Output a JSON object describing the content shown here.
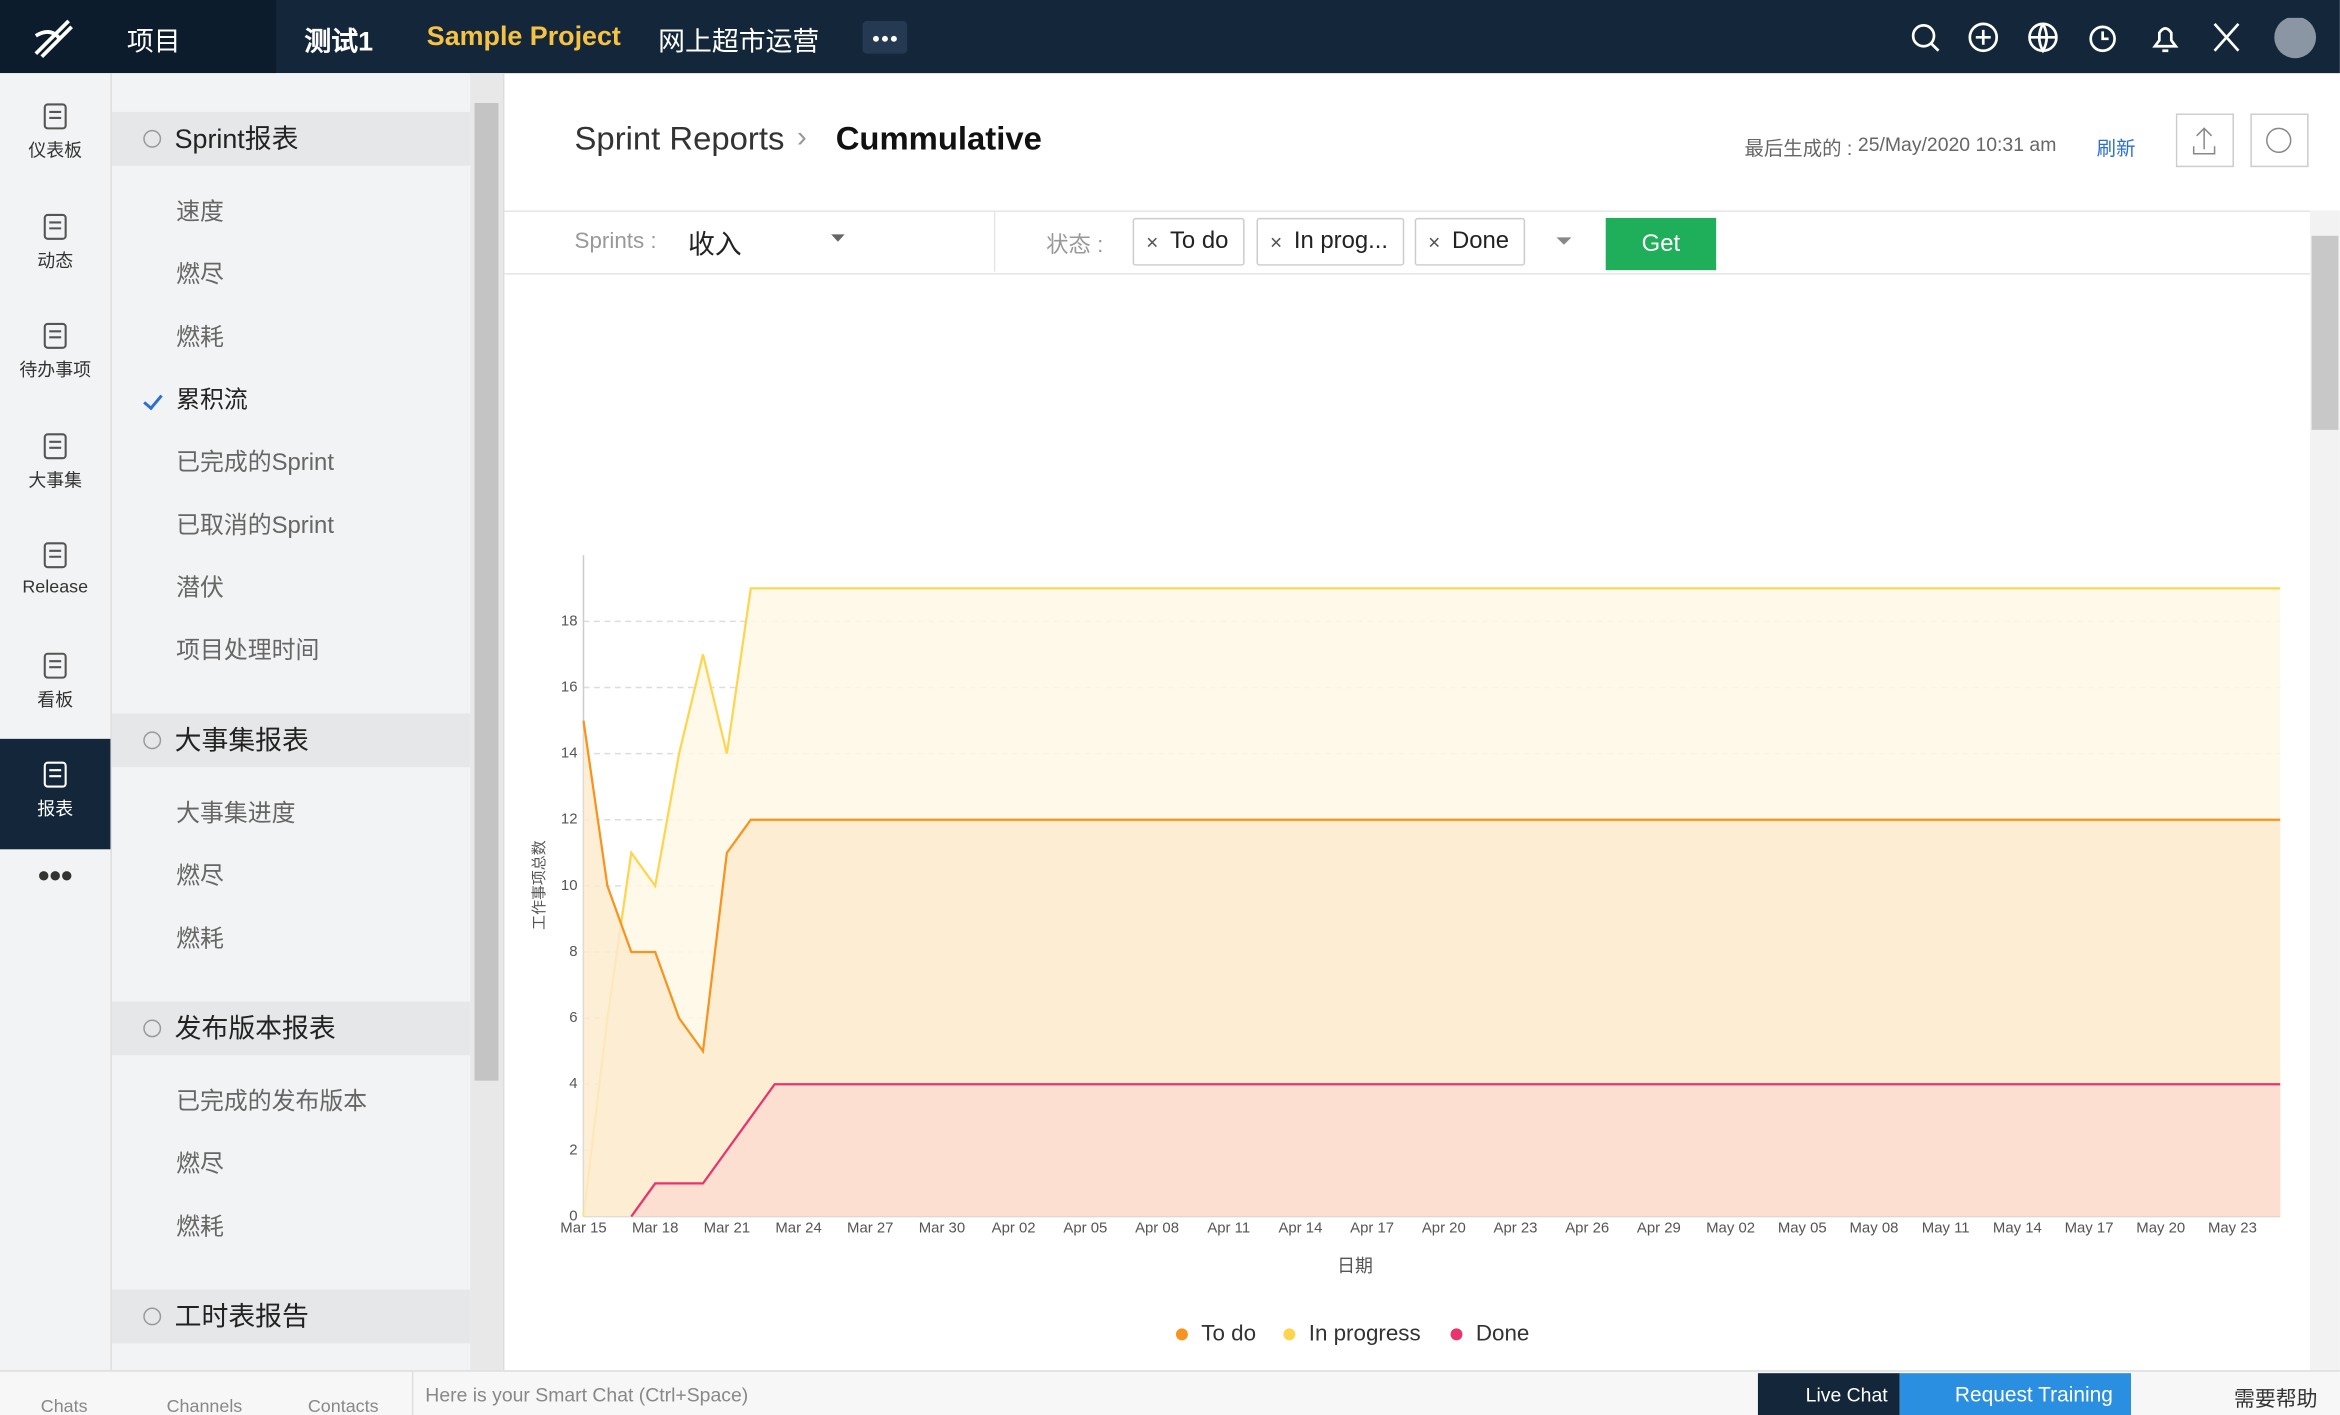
{
  "top_nav": {
    "project": "项目",
    "tabs": [
      "测试1",
      "Sample Project",
      "网上超市运营"
    ]
  },
  "rail": [
    "仪表板",
    "动态",
    "待办事项",
    "大事集",
    "Release",
    "看板",
    "报表"
  ],
  "sidebar": {
    "sections": [
      {
        "title": "Sprint报表",
        "items": [
          "速度",
          "燃尽",
          "燃耗",
          "累积流",
          "已完成的Sprint",
          "已取消的Sprint",
          "潜伏",
          "项目处理时间"
        ]
      },
      {
        "title": "大事集报表",
        "items": [
          "大事集进度",
          "燃尽",
          "燃耗"
        ]
      },
      {
        "title": "发布版本报表",
        "items": [
          "已完成的发布版本",
          "燃尽",
          "燃耗"
        ]
      },
      {
        "title": "工时表报告"
      }
    ]
  },
  "header": {
    "breadcrumb": "Sprint Reports",
    "title": "Cummulative",
    "generated_label": "最后生成的 :",
    "generated_at": "25/May/2020 10:31 am",
    "refresh": "刷新"
  },
  "filters": {
    "sprints_label": "Sprints :",
    "sprint": "收入",
    "status_label": "状态 :",
    "statuses": [
      "To do",
      "In prog...",
      "Done"
    ],
    "button": "Get"
  },
  "bottom_bar": {
    "tabs": [
      "Chats",
      "Channels",
      "Contacts"
    ],
    "chat_placeholder": "Here is your Smart Chat (Ctrl+Space)",
    "live_chat": "Live Chat",
    "request_training": "Request Training",
    "help": "需要帮助"
  },
  "chart_data": {
    "type": "area",
    "x_label": "日期",
    "y_label": "工作事项总数",
    "categories": [
      "Mar 15",
      null,
      null,
      "Mar 18",
      null,
      null,
      "Mar 21",
      null,
      null,
      "Mar 24",
      null,
      null,
      "Mar 27",
      null,
      null,
      "Mar 30",
      null,
      null,
      "Apr 02",
      null,
      null,
      "Apr 05",
      null,
      null,
      "Apr 08",
      null,
      null,
      "Apr 11",
      null,
      null,
      "Apr 14",
      null,
      null,
      "Apr 17",
      null,
      null,
      "Apr 20",
      null,
      null,
      "Apr 23",
      null,
      null,
      "Apr 26",
      null,
      null,
      "Apr 29",
      null,
      null,
      "May 02",
      null,
      null,
      "May 05",
      null,
      null,
      "May 08",
      null,
      null,
      "May 11",
      null,
      null,
      "May 14",
      null,
      null,
      "May 17",
      null,
      null,
      "May 20",
      null,
      null,
      "May 23",
      null,
      null
    ],
    "series": [
      {
        "name": "To do",
        "color": "#f7931e",
        "fill": "#fdebcf",
        "values": [
          15,
          10,
          8,
          8,
          6,
          5,
          11,
          12,
          12,
          12,
          12,
          12,
          12,
          12,
          12,
          12,
          12,
          12,
          12,
          12,
          12,
          12,
          12,
          12,
          12,
          12,
          12,
          12,
          12,
          12,
          12,
          12,
          12,
          12,
          12,
          12,
          12,
          12,
          12,
          12,
          12,
          12,
          12,
          12,
          12,
          12,
          12,
          12,
          12,
          12,
          12,
          12,
          12,
          12,
          12,
          12,
          12,
          12,
          12,
          12,
          12,
          12,
          12,
          12,
          12,
          12,
          12,
          12,
          12,
          12,
          12,
          12
        ]
      },
      {
        "name": "In progress",
        "color": "#ffd54f",
        "fill": "#fff8e6",
        "values": [
          0,
          6,
          11,
          10,
          14,
          17,
          14,
          19,
          19,
          19,
          19,
          19,
          19,
          19,
          19,
          19,
          19,
          19,
          19,
          19,
          19,
          19,
          19,
          19,
          19,
          19,
          19,
          19,
          19,
          19,
          19,
          19,
          19,
          19,
          19,
          19,
          19,
          19,
          19,
          19,
          19,
          19,
          19,
          19,
          19,
          19,
          19,
          19,
          19,
          19,
          19,
          19,
          19,
          19,
          19,
          19,
          19,
          19,
          19,
          19,
          19,
          19,
          19,
          19,
          19,
          19,
          19,
          19,
          19,
          19,
          19,
          19
        ]
      },
      {
        "name": "Done",
        "color": "#e8336d",
        "fill": "#fddcd0",
        "values": [
          null,
          null,
          0,
          1,
          1,
          1,
          2,
          3,
          4,
          4,
          4,
          4,
          4,
          4,
          4,
          4,
          4,
          4,
          4,
          4,
          4,
          4,
          4,
          4,
          4,
          4,
          4,
          4,
          4,
          4,
          4,
          4,
          4,
          4,
          4,
          4,
          4,
          4,
          4,
          4,
          4,
          4,
          4,
          4,
          4,
          4,
          4,
          4,
          4,
          4,
          4,
          4,
          4,
          4,
          4,
          4,
          4,
          4,
          4,
          4,
          4,
          4,
          4,
          4,
          4,
          4,
          4,
          4,
          4,
          4,
          4,
          4
        ]
      }
    ],
    "ylim": [
      0,
      20
    ],
    "yticks": [
      0,
      2,
      4,
      6,
      8,
      10,
      12,
      14,
      16,
      18
    ],
    "grid": true,
    "legend": "bottom"
  }
}
